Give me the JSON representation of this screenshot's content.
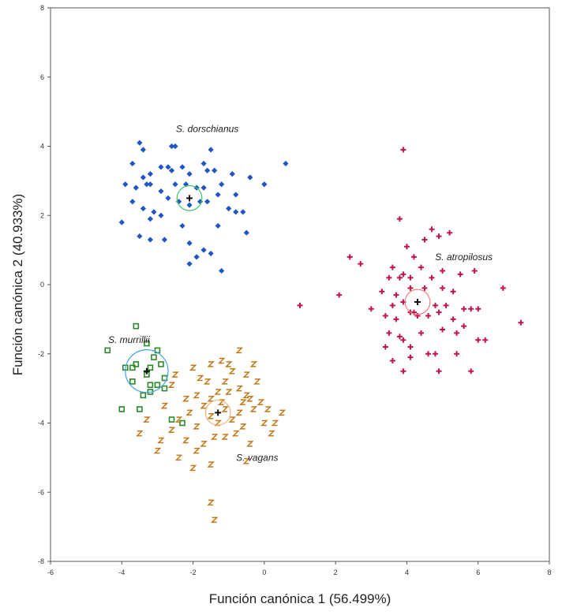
{
  "chart_data": {
    "type": "scatter",
    "title": "",
    "xlabel": "Función canónica 1 (56.499%)",
    "ylabel": "Función canónica 2 (40.933%)",
    "xlim": [
      -6,
      8
    ],
    "ylim": [
      -8,
      8
    ],
    "x_ticks": [
      "-6",
      "-4",
      "-2",
      "0",
      "2",
      "4",
      "6",
      "8"
    ],
    "y_ticks": [
      "-8",
      "-6",
      "-4",
      "-2",
      "0",
      "2",
      "4",
      "6",
      "8"
    ],
    "grid": false,
    "legend": "none",
    "series": [
      {
        "name": "S. dorschianus",
        "marker": "diamond",
        "color": "#2255c4",
        "centroid": [
          -2.1,
          2.5
        ],
        "circle_color": "#3cc864",
        "circle_radius": 0.35,
        "points": [
          [
            -3.5,
            4.1
          ],
          [
            -3.4,
            3.9
          ],
          [
            -2.6,
            4.0
          ],
          [
            -2.5,
            4.0
          ],
          [
            -1.5,
            3.9
          ],
          [
            -2.9,
            3.4
          ],
          [
            -3.7,
            3.5
          ],
          [
            -3.4,
            3.1
          ],
          [
            -3.2,
            3.2
          ],
          [
            -2.7,
            3.4
          ],
          [
            -2.6,
            3.3
          ],
          [
            -2.3,
            3.4
          ],
          [
            -2.1,
            3.2
          ],
          [
            -1.7,
            3.5
          ],
          [
            -1.6,
            3.3
          ],
          [
            -1.4,
            3.3
          ],
          [
            -0.9,
            3.2
          ],
          [
            0.6,
            3.5
          ],
          [
            -0.4,
            3.1
          ],
          [
            -3.9,
            2.9
          ],
          [
            -3.6,
            2.8
          ],
          [
            -3.3,
            2.9
          ],
          [
            -3.2,
            2.9
          ],
          [
            -2.9,
            2.7
          ],
          [
            -2.5,
            2.9
          ],
          [
            -2.2,
            2.9
          ],
          [
            -1.9,
            2.8
          ],
          [
            -1.7,
            2.8
          ],
          [
            -1.2,
            2.9
          ],
          [
            -0.8,
            2.6
          ],
          [
            0.0,
            2.9
          ],
          [
            -3.7,
            2.4
          ],
          [
            -3.4,
            2.2
          ],
          [
            -2.7,
            2.5
          ],
          [
            -2.4,
            2.4
          ],
          [
            -2.1,
            2.3
          ],
          [
            -1.8,
            2.4
          ],
          [
            -1.6,
            2.4
          ],
          [
            -1.3,
            2.6
          ],
          [
            -1.0,
            2.2
          ],
          [
            -0.8,
            2.1
          ],
          [
            -0.6,
            2.1
          ],
          [
            -3.1,
            2.1
          ],
          [
            -3.2,
            1.9
          ],
          [
            -2.9,
            2.0
          ],
          [
            -4.0,
            1.8
          ],
          [
            -1.3,
            1.7
          ],
          [
            -2.3,
            1.7
          ],
          [
            -0.5,
            1.5
          ],
          [
            -3.5,
            1.4
          ],
          [
            -3.2,
            1.3
          ],
          [
            -2.8,
            1.3
          ],
          [
            -2.1,
            1.2
          ],
          [
            -1.7,
            1.0
          ],
          [
            -1.5,
            0.9
          ],
          [
            -1.9,
            0.8
          ],
          [
            -2.1,
            0.6
          ],
          [
            -1.2,
            0.4
          ]
        ]
      },
      {
        "name": "S. atropilosus",
        "marker": "plus",
        "color": "#c0144a",
        "centroid": [
          4.3,
          -0.5
        ],
        "circle_color": "#f08080",
        "circle_radius": 0.35,
        "points": [
          [
            3.9,
            3.9
          ],
          [
            3.8,
            1.9
          ],
          [
            4.7,
            1.6
          ],
          [
            4.9,
            1.4
          ],
          [
            5.2,
            1.5
          ],
          [
            4.5,
            1.3
          ],
          [
            4.0,
            1.1
          ],
          [
            4.2,
            0.8
          ],
          [
            2.4,
            0.8
          ],
          [
            2.7,
            0.6
          ],
          [
            4.4,
            0.5
          ],
          [
            3.6,
            0.5
          ],
          [
            5.0,
            0.4
          ],
          [
            3.5,
            0.2
          ],
          [
            3.8,
            0.2
          ],
          [
            3.9,
            0.3
          ],
          [
            4.1,
            0.2
          ],
          [
            4.7,
            0.2
          ],
          [
            5.5,
            0.3
          ],
          [
            5.9,
            0.4
          ],
          [
            6.7,
            -0.1
          ],
          [
            3.3,
            -0.2
          ],
          [
            3.7,
            -0.3
          ],
          [
            4.1,
            -0.1
          ],
          [
            4.5,
            -0.1
          ],
          [
            5.0,
            -0.1
          ],
          [
            5.3,
            -0.2
          ],
          [
            2.1,
            -0.3
          ],
          [
            1.0,
            -0.6
          ],
          [
            3.0,
            -0.7
          ],
          [
            3.6,
            -0.6
          ],
          [
            3.9,
            -0.5
          ],
          [
            4.2,
            -0.8
          ],
          [
            4.8,
            -0.6
          ],
          [
            5.1,
            -0.6
          ],
          [
            5.6,
            -0.7
          ],
          [
            5.8,
            -0.7
          ],
          [
            6.0,
            -0.7
          ],
          [
            3.4,
            -0.9
          ],
          [
            3.7,
            -1.0
          ],
          [
            4.1,
            -0.8
          ],
          [
            4.3,
            -0.9
          ],
          [
            4.6,
            -0.9
          ],
          [
            4.9,
            -0.8
          ],
          [
            5.3,
            -1.0
          ],
          [
            5.6,
            -1.2
          ],
          [
            7.2,
            -1.1
          ],
          [
            3.5,
            -1.4
          ],
          [
            3.8,
            -1.5
          ],
          [
            4.4,
            -1.4
          ],
          [
            5.0,
            -1.3
          ],
          [
            5.4,
            -1.4
          ],
          [
            6.0,
            -1.6
          ],
          [
            3.9,
            -1.6
          ],
          [
            3.4,
            -1.8
          ],
          [
            4.1,
            -1.8
          ],
          [
            4.8,
            -2.0
          ],
          [
            6.2,
            -1.6
          ],
          [
            3.6,
            -2.2
          ],
          [
            4.1,
            -2.1
          ],
          [
            4.6,
            -2.0
          ],
          [
            5.4,
            -2.0
          ],
          [
            3.9,
            -2.5
          ],
          [
            4.9,
            -2.5
          ],
          [
            5.8,
            -2.5
          ]
        ]
      },
      {
        "name": "S. murrillii",
        "marker": "square",
        "color": "#2a8a2a",
        "centroid": [
          -3.3,
          -2.5
        ],
        "circle_color": "#4aa0ea",
        "circle_radius": 0.6,
        "points": [
          [
            -3.6,
            -1.2
          ],
          [
            -4.4,
            -1.9
          ],
          [
            -3.3,
            -1.7
          ],
          [
            -3.0,
            -1.9
          ],
          [
            -3.1,
            -2.1
          ],
          [
            -2.9,
            -2.3
          ],
          [
            -3.6,
            -2.3
          ],
          [
            -3.9,
            -2.4
          ],
          [
            -3.7,
            -2.4
          ],
          [
            -3.2,
            -2.4
          ],
          [
            -3.3,
            -2.6
          ],
          [
            -2.8,
            -2.7
          ],
          [
            -3.0,
            -2.9
          ],
          [
            -3.2,
            -2.9
          ],
          [
            -3.7,
            -2.8
          ],
          [
            -2.8,
            -3.0
          ],
          [
            -3.2,
            -3.1
          ],
          [
            -3.4,
            -3.2
          ],
          [
            -4.0,
            -3.6
          ],
          [
            -3.5,
            -3.6
          ],
          [
            -2.6,
            -3.9
          ],
          [
            -2.3,
            -4.0
          ]
        ]
      },
      {
        "name": "S. vagans",
        "marker": "z",
        "color": "#c07818",
        "centroid": [
          -1.3,
          -3.7
        ],
        "circle_color": "#f4b076",
        "circle_radius": 0.35,
        "points": [
          [
            -0.7,
            -1.9
          ],
          [
            -1.2,
            -2.2
          ],
          [
            -0.3,
            -2.3
          ],
          [
            -1.5,
            -2.3
          ],
          [
            -1.0,
            -2.3
          ],
          [
            -2.0,
            -2.4
          ],
          [
            -0.9,
            -2.5
          ],
          [
            -0.5,
            -2.6
          ],
          [
            -2.5,
            -2.6
          ],
          [
            -1.8,
            -2.7
          ],
          [
            -1.1,
            -2.8
          ],
          [
            -1.6,
            -2.8
          ],
          [
            -0.2,
            -2.8
          ],
          [
            -2.6,
            -2.9
          ],
          [
            -0.7,
            -3.0
          ],
          [
            -1.0,
            -3.1
          ],
          [
            -1.3,
            -3.1
          ],
          [
            -1.9,
            -3.2
          ],
          [
            -0.5,
            -3.2
          ],
          [
            -1.5,
            -3.3
          ],
          [
            -2.2,
            -3.3
          ],
          [
            -0.4,
            -3.3
          ],
          [
            -0.1,
            -3.4
          ],
          [
            -1.2,
            -3.4
          ],
          [
            -0.6,
            -3.4
          ],
          [
            -1.7,
            -3.5
          ],
          [
            -2.8,
            -3.5
          ],
          [
            -0.3,
            -3.6
          ],
          [
            0.1,
            -3.6
          ],
          [
            -1.1,
            -3.6
          ],
          [
            -2.1,
            -3.7
          ],
          [
            -0.7,
            -3.7
          ],
          [
            0.5,
            -3.7
          ],
          [
            -1.5,
            -3.8
          ],
          [
            -0.9,
            -3.9
          ],
          [
            -2.4,
            -3.9
          ],
          [
            -3.3,
            -3.9
          ],
          [
            -1.3,
            -4.0
          ],
          [
            0.0,
            -4.0
          ],
          [
            0.3,
            -4.0
          ],
          [
            -0.6,
            -4.1
          ],
          [
            -1.9,
            -4.1
          ],
          [
            -2.6,
            -4.2
          ],
          [
            -3.5,
            -4.3
          ],
          [
            0.2,
            -4.3
          ],
          [
            -0.8,
            -4.3
          ],
          [
            -1.1,
            -4.4
          ],
          [
            -1.4,
            -4.4
          ],
          [
            -2.2,
            -4.5
          ],
          [
            -2.9,
            -4.5
          ],
          [
            -1.7,
            -4.6
          ],
          [
            -0.4,
            -4.6
          ],
          [
            -1.9,
            -4.8
          ],
          [
            -3.0,
            -4.8
          ],
          [
            -2.4,
            -5.0
          ],
          [
            -0.5,
            -5.1
          ],
          [
            -1.5,
            -5.2
          ],
          [
            -2.0,
            -5.3
          ],
          [
            -1.5,
            -6.3
          ],
          [
            -1.4,
            -6.8
          ]
        ]
      }
    ],
    "annotations": [
      {
        "text": "S. dorschianus",
        "x": -1.6,
        "y": 4.5
      },
      {
        "text": "S. atropilosus",
        "x": 5.6,
        "y": 0.8
      },
      {
        "text": "S. murrillii",
        "x": -3.8,
        "y": -1.6
      },
      {
        "text": "S. vagans",
        "x": -0.2,
        "y": -5.0
      }
    ]
  }
}
